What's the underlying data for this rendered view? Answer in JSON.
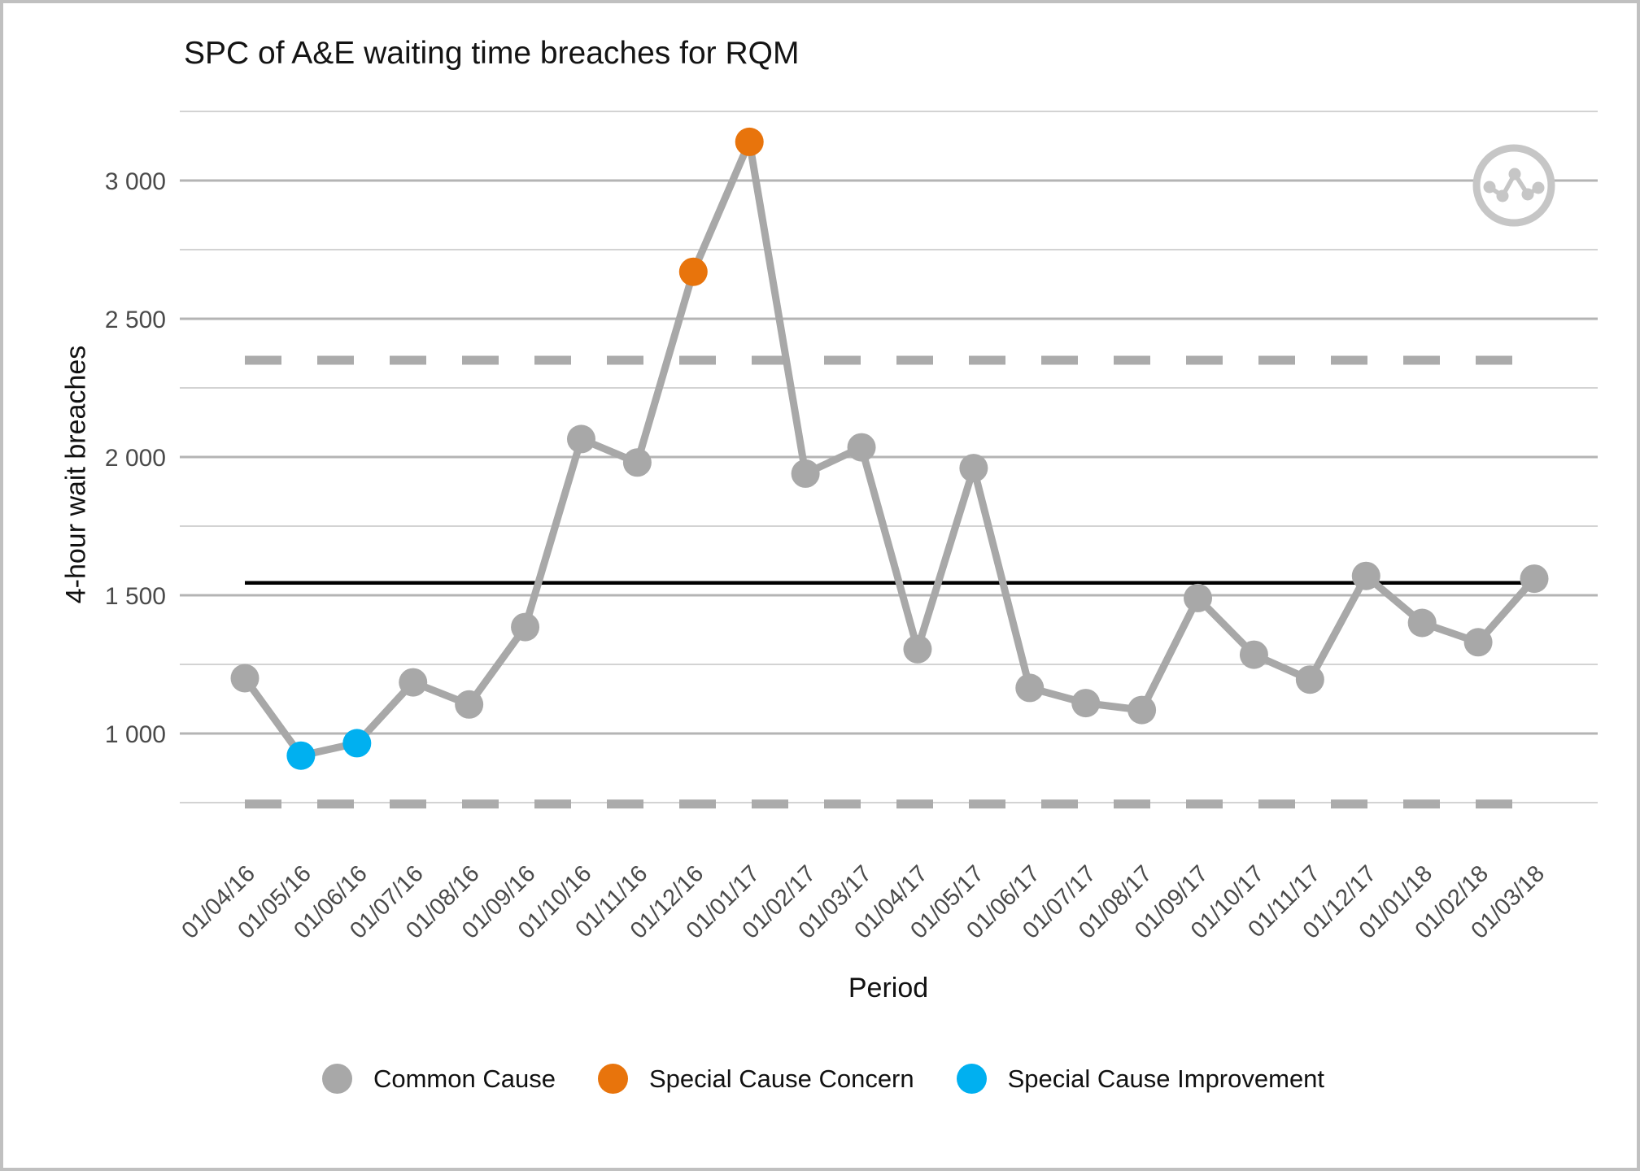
{
  "frame": {
    "border_color": "#c0c0c0"
  },
  "chart": {
    "title": "SPC of A&E waiting time breaches for RQM",
    "x_axis_title": "Period",
    "y_axis_title": "4-hour wait breaches"
  },
  "legend": {
    "items": [
      {
        "label": "Common Cause",
        "color": "#A8A8A8"
      },
      {
        "label": "Special Cause Concern",
        "color": "#E8740C"
      },
      {
        "label": "Special Cause Improvement",
        "color": "#00B0F0"
      }
    ]
  },
  "watermark_icon": "line-chart-icon",
  "chart_data": {
    "type": "line",
    "title": "SPC of A&E waiting time breaches for RQM",
    "xlabel": "Period",
    "ylabel": "4-hour wait breaches",
    "categories": [
      "01/04/16",
      "01/05/16",
      "01/06/16",
      "01/07/16",
      "01/08/16",
      "01/09/16",
      "01/10/16",
      "01/11/16",
      "01/12/16",
      "01/01/17",
      "01/02/17",
      "01/03/17",
      "01/04/17",
      "01/05/17",
      "01/06/17",
      "01/07/17",
      "01/08/17",
      "01/09/17",
      "01/10/17",
      "01/11/17",
      "01/12/17",
      "01/01/18",
      "01/02/18",
      "01/03/18"
    ],
    "series": [
      {
        "name": "4-hour wait breaches",
        "values": [
          1200,
          920,
          965,
          1185,
          1105,
          1385,
          2065,
          1980,
          2670,
          3140,
          1940,
          2035,
          1305,
          1960,
          1165,
          1110,
          1085,
          1490,
          1285,
          1195,
          1570,
          1400,
          1330,
          1560
        ]
      }
    ],
    "point_classification": [
      "common",
      "improvement",
      "improvement",
      "common",
      "common",
      "common",
      "common",
      "common",
      "concern",
      "concern",
      "common",
      "common",
      "common",
      "common",
      "common",
      "common",
      "common",
      "common",
      "common",
      "common",
      "common",
      "common",
      "common",
      "common"
    ],
    "mean": 1545,
    "ucl": 2350,
    "lcl": 745,
    "yticks": {
      "values": [
        1000,
        1500,
        2000,
        2500,
        3000
      ],
      "labels": [
        "1 000",
        "1 500",
        "2 000",
        "2 500",
        "3 000"
      ]
    },
    "minor_gridlines": [
      750,
      1250,
      1750,
      2250,
      2750,
      3250
    ],
    "ylim": [
      585,
      3320
    ],
    "grid": true,
    "legend_position": "bottom",
    "colors": {
      "common": "#A8A8A8",
      "concern": "#E8740C",
      "improvement": "#00B0F0",
      "line": "#A8A8A8",
      "limit_dash": "#ABABAB",
      "center_line": "#000000",
      "grid_major": "#B4B4B4",
      "grid_minor": "#CDCDCD",
      "tick_text": "#4A4A4A",
      "watermark": "#C6C6C6"
    }
  }
}
